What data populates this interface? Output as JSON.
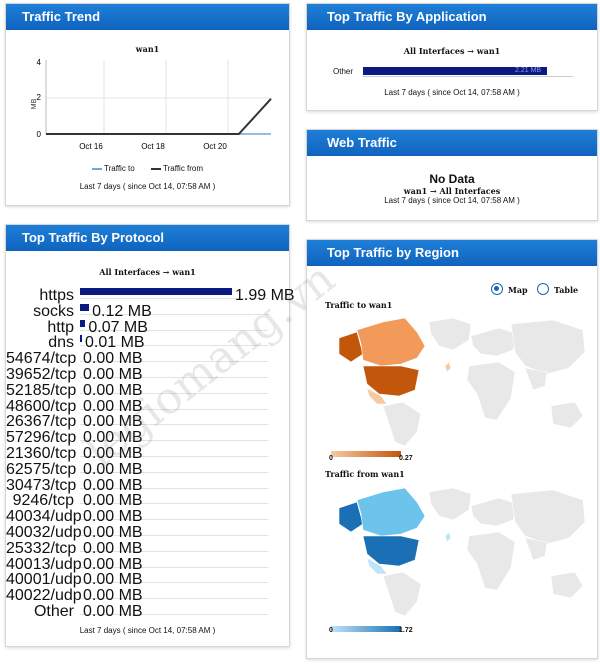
{
  "traffic_trend": {
    "title": "Traffic Trend",
    "chart_title": "wan1",
    "ylabel": "MB",
    "y_ticks": [
      "4",
      "2",
      "0"
    ],
    "x_ticks": [
      "Oct 16",
      "Oct 18",
      "Oct 20"
    ],
    "legend_to": "Traffic to",
    "legend_from": "Traffic from",
    "caption": "Last 7 days ( since Oct 14, 07:58 AM )",
    "colors": {
      "to": "#6fa8dc",
      "from": "#333333"
    }
  },
  "chart_data": [
    {
      "type": "line",
      "title": "wan1",
      "ylabel": "MB",
      "ylim": [
        0,
        4
      ],
      "x": [
        "Oct 14",
        "Oct 15",
        "Oct 16",
        "Oct 17",
        "Oct 18",
        "Oct 19",
        "Oct 20",
        "Oct 21"
      ],
      "series": [
        {
          "name": "Traffic to",
          "values": [
            0,
            0,
            0,
            0,
            0,
            0,
            0,
            0
          ]
        },
        {
          "name": "Traffic from",
          "values": [
            0,
            0,
            0,
            0,
            0,
            0,
            0,
            1.9
          ]
        }
      ]
    },
    {
      "type": "bar",
      "title": "All Interfaces → wan1",
      "categories": [
        "https",
        "socks",
        "http",
        "dns",
        "54674/tcp",
        "39652/tcp",
        "52185/tcp",
        "48600/tcp",
        "26367/tcp",
        "57296/tcp",
        "21360/tcp",
        "62575/tcp",
        "30473/tcp",
        "9246/tcp",
        "40034/udp",
        "40032/udp",
        "25332/tcp",
        "40013/udp",
        "40001/udp",
        "40022/udp",
        "Other"
      ],
      "values": [
        1.99,
        0.12,
        0.07,
        0.01,
        0,
        0,
        0,
        0,
        0,
        0,
        0,
        0,
        0,
        0,
        0,
        0,
        0,
        0,
        0,
        0,
        0
      ],
      "unit": "MB"
    },
    {
      "type": "bar",
      "title": "All Interfaces → wan1",
      "categories": [
        "Other"
      ],
      "values": [
        2.21
      ],
      "unit": "MB"
    }
  ],
  "top_app": {
    "title": "Top Traffic By Application",
    "chart_title": "All Interfaces → wan1",
    "label": "Other",
    "value_label": "2.21 MB",
    "caption": "Last 7 days ( since Oct 14, 07:58 AM )"
  },
  "web_traffic": {
    "title": "Web Traffic",
    "no_data": "No Data",
    "sub": "wan1 → All Interfaces",
    "caption": "Last 7 days ( since Oct 14, 07:58 AM )"
  },
  "protocol": {
    "title": "Top Traffic By Protocol",
    "chart_title": "All Interfaces → wan1",
    "rows": [
      {
        "label": "https",
        "value": "1.99 MB",
        "v": 1.99
      },
      {
        "label": "socks",
        "value": "0.12 MB",
        "v": 0.12
      },
      {
        "label": "http",
        "value": "0.07 MB",
        "v": 0.07
      },
      {
        "label": "dns",
        "value": "0.01 MB",
        "v": 0.01
      },
      {
        "label": "54674/tcp",
        "value": "0.00 MB",
        "v": 0
      },
      {
        "label": "39652/tcp",
        "value": "0.00 MB",
        "v": 0
      },
      {
        "label": "52185/tcp",
        "value": "0.00 MB",
        "v": 0
      },
      {
        "label": "48600/tcp",
        "value": "0.00 MB",
        "v": 0
      },
      {
        "label": "26367/tcp",
        "value": "0.00 MB",
        "v": 0
      },
      {
        "label": "57296/tcp",
        "value": "0.00 MB",
        "v": 0
      },
      {
        "label": "21360/tcp",
        "value": "0.00 MB",
        "v": 0
      },
      {
        "label": "62575/tcp",
        "value": "0.00 MB",
        "v": 0
      },
      {
        "label": "30473/tcp",
        "value": "0.00 MB",
        "v": 0
      },
      {
        "label": "9246/tcp",
        "value": "0.00 MB",
        "v": 0
      },
      {
        "label": "40034/udp",
        "value": "0.00 MB",
        "v": 0
      },
      {
        "label": "40032/udp",
        "value": "0.00 MB",
        "v": 0
      },
      {
        "label": "25332/tcp",
        "value": "0.00 MB",
        "v": 0
      },
      {
        "label": "40013/udp",
        "value": "0.00 MB",
        "v": 0
      },
      {
        "label": "40001/udp",
        "value": "0.00 MB",
        "v": 0
      },
      {
        "label": "40022/udp",
        "value": "0.00 MB",
        "v": 0
      },
      {
        "label": "Other",
        "value": "0.00 MB",
        "v": 0
      }
    ],
    "caption": "Last 7 days ( since Oct 14, 07:58 AM )"
  },
  "region": {
    "title": "Top Traffic by Region",
    "opt_map": "Map",
    "opt_table": "Table",
    "selected": "Map",
    "to_title": "Traffic to wan1",
    "to_min": "0",
    "to_max": "0.27",
    "from_title": "Traffic from wan1",
    "from_min": "0",
    "from_max": "1.72",
    "colors": {
      "to_low": "#f6c9a0",
      "to_high": "#c2560b",
      "from_low": "#bfe3f7",
      "from_high": "#1a6fb5",
      "land": "#e8e8e8"
    }
  },
  "watermark": "legiomang.vn"
}
